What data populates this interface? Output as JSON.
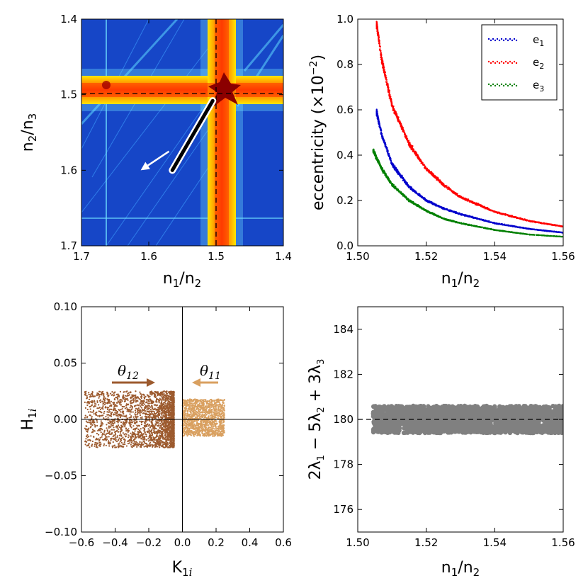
{
  "chart_data": [
    {
      "id": "map",
      "type": "heatmap",
      "title": "",
      "xlabel": "n1/n2",
      "ylabel": "n2/n3",
      "xlim": [
        1.7,
        1.4
      ],
      "ylim": [
        1.7,
        1.4
      ],
      "xticks": [
        "1.7",
        "1.6",
        "1.5",
        "1.4"
      ],
      "yticks": [
        "1.4",
        "1.5",
        "1.6",
        "1.7"
      ],
      "resonance_lines": {
        "n1_n2": 1.5,
        "n2_n3": 1.5
      },
      "trajectory": {
        "from": [
          1.505,
          1.508
        ],
        "to": [
          1.565,
          1.6
        ]
      },
      "arrow": {
        "from": [
          1.57,
          1.575
        ],
        "to": [
          1.612,
          1.6
        ]
      },
      "colors": {
        "background": "#1a4fd6",
        "band_core": "#ff6a00",
        "band_edge": "#ffe600",
        "resonance": "#8b0000",
        "trajectory": "#000000",
        "arrow": "#ffffff"
      }
    },
    {
      "id": "ecc",
      "type": "scatter",
      "title": "",
      "xlabel": "n1/n2",
      "ylabel": "eccentricity (×10⁻²)",
      "xlim": [
        1.5,
        1.56
      ],
      "ylim": [
        0.0,
        1.0
      ],
      "xticks": [
        "1.50",
        "1.52",
        "1.54",
        "1.56"
      ],
      "yticks": [
        "0.0",
        "0.2",
        "0.4",
        "0.6",
        "0.8",
        "1.0"
      ],
      "legend_position": "top-right",
      "series": [
        {
          "name": "e1",
          "label_base": "e",
          "label_sub": "1",
          "color": "#0000cc",
          "x": [
            1.5055,
            1.507,
            1.51,
            1.515,
            1.52,
            1.525,
            1.53,
            1.54,
            1.55,
            1.56
          ],
          "values": [
            0.59,
            0.49,
            0.36,
            0.26,
            0.2,
            0.165,
            0.14,
            0.1,
            0.075,
            0.058
          ]
        },
        {
          "name": "e2",
          "label_base": "e",
          "label_sub": "2",
          "color": "#ff0000",
          "x": [
            1.5055,
            1.507,
            1.51,
            1.515,
            1.52,
            1.525,
            1.53,
            1.54,
            1.55,
            1.56
          ],
          "values": [
            0.98,
            0.82,
            0.62,
            0.45,
            0.34,
            0.27,
            0.215,
            0.15,
            0.11,
            0.085
          ]
        },
        {
          "name": "e3",
          "label_base": "e",
          "label_sub": "3",
          "color": "#008000",
          "x": [
            1.5045,
            1.507,
            1.51,
            1.515,
            1.52,
            1.525,
            1.53,
            1.54,
            1.55,
            1.56
          ],
          "values": [
            0.42,
            0.34,
            0.27,
            0.2,
            0.155,
            0.12,
            0.1,
            0.07,
            0.05,
            0.04
          ]
        }
      ]
    },
    {
      "id": "hk",
      "type": "scatter",
      "title": "",
      "xlabel": "K1i",
      "ylabel": "H1i",
      "xlim": [
        -0.6,
        0.6
      ],
      "ylim": [
        -0.1,
        0.1
      ],
      "xticks": [
        "−0.6",
        "−0.4",
        "−0.2",
        "0.0",
        "0.2",
        "0.4",
        "0.6"
      ],
      "yticks": [
        "0.10",
        "0.05",
        "0.00",
        "−0.05",
        "−0.10"
      ],
      "series": [
        {
          "name": "θ12",
          "color": "#9c5a2e",
          "k_range": [
            -0.58,
            -0.05
          ],
          "h_range": [
            -0.025,
            0.025
          ]
        },
        {
          "name": "θ11",
          "color": "#d9a060",
          "k_range": [
            0.0,
            0.25
          ],
          "h_range": [
            -0.015,
            0.018
          ]
        }
      ],
      "annotations": [
        {
          "label_base": "θ",
          "label_sub": "12",
          "arrow": "right",
          "color": "#9c5a2e"
        },
        {
          "label_base": "θ",
          "label_sub": "11",
          "arrow": "left",
          "color": "#d9a060"
        }
      ]
    },
    {
      "id": "angle",
      "type": "scatter",
      "title": "",
      "xlabel": "n1/n2",
      "ylabel": "2λ1 − 5λ2 + 3λ3",
      "xlim": [
        1.5,
        1.56
      ],
      "ylim": [
        175,
        185
      ],
      "xticks": [
        "1.50",
        "1.52",
        "1.54",
        "1.56"
      ],
      "yticks": [
        "184",
        "182",
        "180",
        "178",
        "176"
      ],
      "center": 180,
      "spread": [
        179.4,
        180.6
      ],
      "x_range": [
        1.5045,
        1.56
      ],
      "color": "#808080"
    }
  ]
}
